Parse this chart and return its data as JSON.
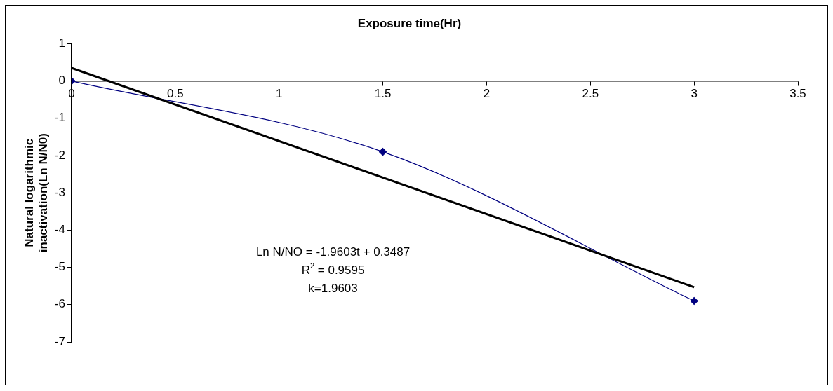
{
  "chart_data": {
    "type": "line",
    "xlabel": "Exposure time(Hr)",
    "ylabel": "Natural logarithmic inactivation(Ln N/N0)",
    "x": [
      0,
      1.5,
      3
    ],
    "series": [
      {
        "color": "#000080",
        "values": [
          0,
          -1.9,
          -5.9
        ],
        "marker": "diamond"
      },
      {
        "type": "line",
        "color": "#000000",
        "x": [
          0,
          3
        ],
        "values": [
          0.35,
          -5.53
        ],
        "marker": "none"
      }
    ],
    "xlim": [
      0,
      3.5
    ],
    "xticks": [
      0,
      0.5,
      1,
      1.5,
      2,
      2.5,
      3,
      3.5
    ],
    "ylim": [
      -7,
      1
    ],
    "yticks": [
      -7,
      -6,
      -5,
      -4,
      -3,
      -2,
      -1,
      0,
      1
    ],
    "annotations": [
      "Ln N/NO = -1.9603t + 0.3487",
      "R$^{2}$ = 0.9595",
      "k=1.9603"
    ],
    "grid": false,
    "legend": false
  }
}
